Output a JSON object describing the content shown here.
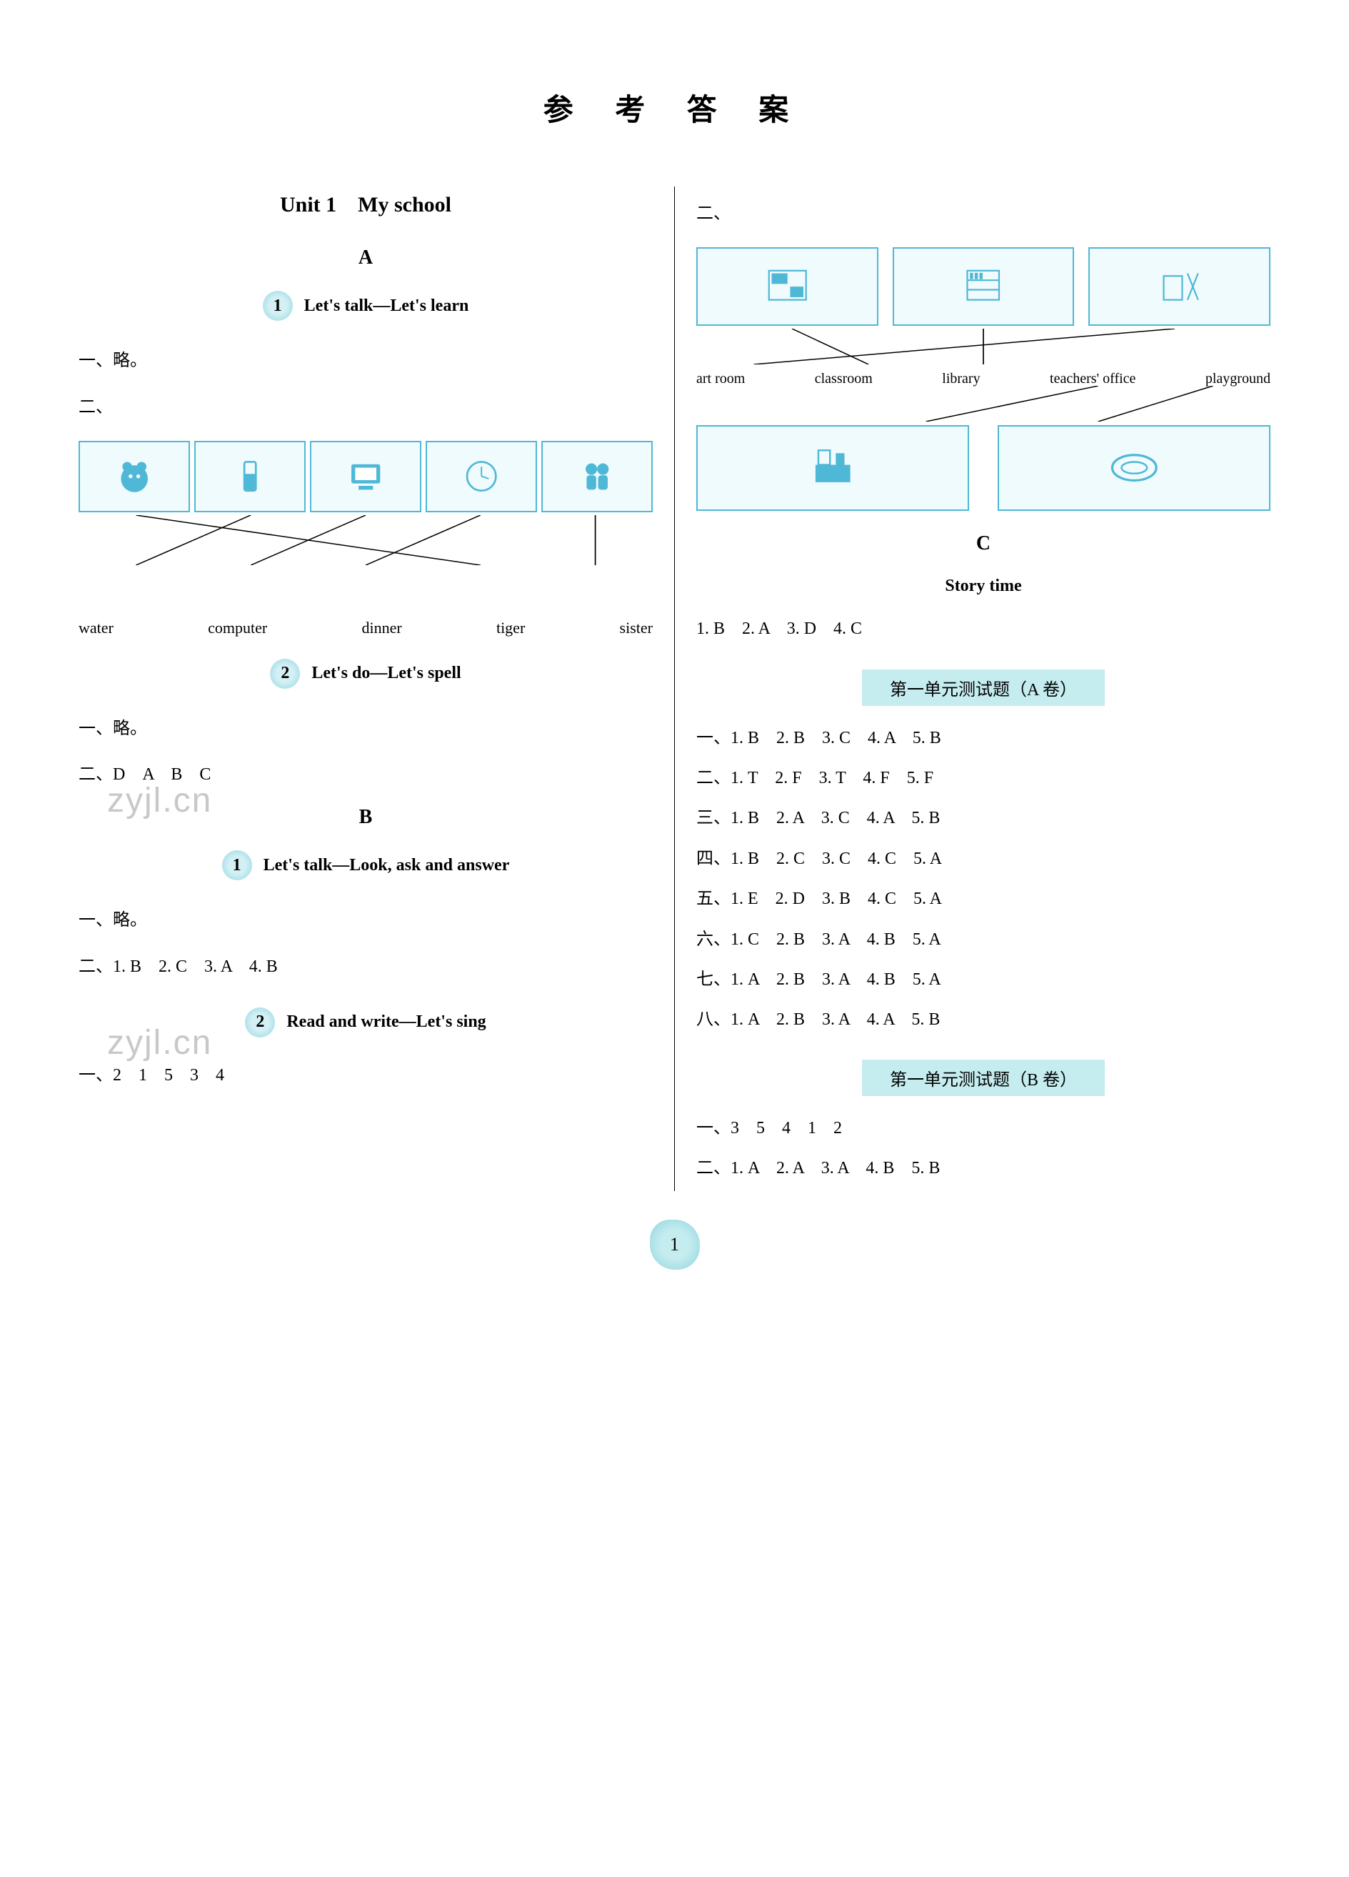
{
  "title": "参 考 答 案",
  "page_number": "1",
  "colors": {
    "accent_bg": "#c5ecef",
    "badge_inner": "#d4f0f5",
    "badge_outer": "#8fd4e0",
    "img_border": "#4fb8d6",
    "img_bg": "#f0fbfd",
    "watermark": "#c8c8c8",
    "text": "#000000",
    "divider": "#000000"
  },
  "typography": {
    "title_fontsize": 42,
    "section_fontsize": 28,
    "body_fontsize": 24,
    "word_fontsize": 22
  },
  "left": {
    "unit_title": "Unit 1　My school",
    "section_a": "A",
    "lesson1_num": "1",
    "lesson1_label": "Let's talk—Let's learn",
    "l1_line1": "一、略。",
    "l1_line2": "二、",
    "match1": {
      "images": [
        "tiger",
        "glass",
        "computer",
        "clock",
        "sisters"
      ],
      "words": [
        "water",
        "computer",
        "dinner",
        "tiger",
        "sister"
      ],
      "lines": [
        {
          "from": 0,
          "to": 3
        },
        {
          "from": 1,
          "to": 0
        },
        {
          "from": 2,
          "to": 1
        },
        {
          "from": 3,
          "to": 2
        },
        {
          "from": 4,
          "to": 4
        }
      ]
    },
    "lesson2_num": "2",
    "lesson2_label": "Let's do—Let's spell",
    "l2_line1": "一、略。",
    "l2_line2": "二、D　A　B　C",
    "watermark1": "zyjl.cn",
    "section_b": "B",
    "lessonB1_num": "1",
    "lessonB1_label": "Let's talk—Look, ask and answer",
    "b1_line1": "一、略。",
    "b1_line2": "二、1. B　2. C　3. A　4. B",
    "lessonB2_num": "2",
    "lessonB2_label": "Read and write—Let's sing",
    "watermark2": "zyjl.cn",
    "b2_line1": "一、2　1　5　3　4"
  },
  "right": {
    "line_top": "二、",
    "match2": {
      "top_images": [
        "classroom",
        "library",
        "art-room"
      ],
      "words": [
        "art room",
        "classroom",
        "library",
        "teachers' office",
        "playground"
      ],
      "bottom_images": [
        "teachers-office",
        "playground"
      ],
      "top_lines": [
        {
          "from": 0,
          "to": 1
        },
        {
          "from": 1,
          "to": 2
        },
        {
          "from": 2,
          "to": 0
        }
      ],
      "bottom_lines": [
        {
          "from": 3,
          "to": 0
        },
        {
          "from": 4,
          "to": 1
        }
      ]
    },
    "section_c": "C",
    "story_label": "Story time",
    "story_answers": "1. B　2. A　3. D　4. C",
    "testA_header": "第一单元测试题（A 卷）",
    "testA_rows": [
      "一、1. B　2. B　3. C　4. A　5. B",
      "二、1. T　2. F　3. T　4. F　5. F",
      "三、1. B　2. A　3. C　4. A　5. B",
      "四、1. B　2. C　3. C　4. C　5. A",
      "五、1. E　2. D　3. B　4. C　5. A",
      "六、1. C　2. B　3. A　4. B　5. A",
      "七、1. A　2. B　3. A　4. B　5. A",
      "八、1. A　2. B　3. A　4. A　5. B"
    ],
    "testB_header": "第一单元测试题（B 卷）",
    "testB_rows": [
      "一、3　5　4　1　2",
      "二、1. A　2. A　3. A　4. B　5. B"
    ]
  }
}
